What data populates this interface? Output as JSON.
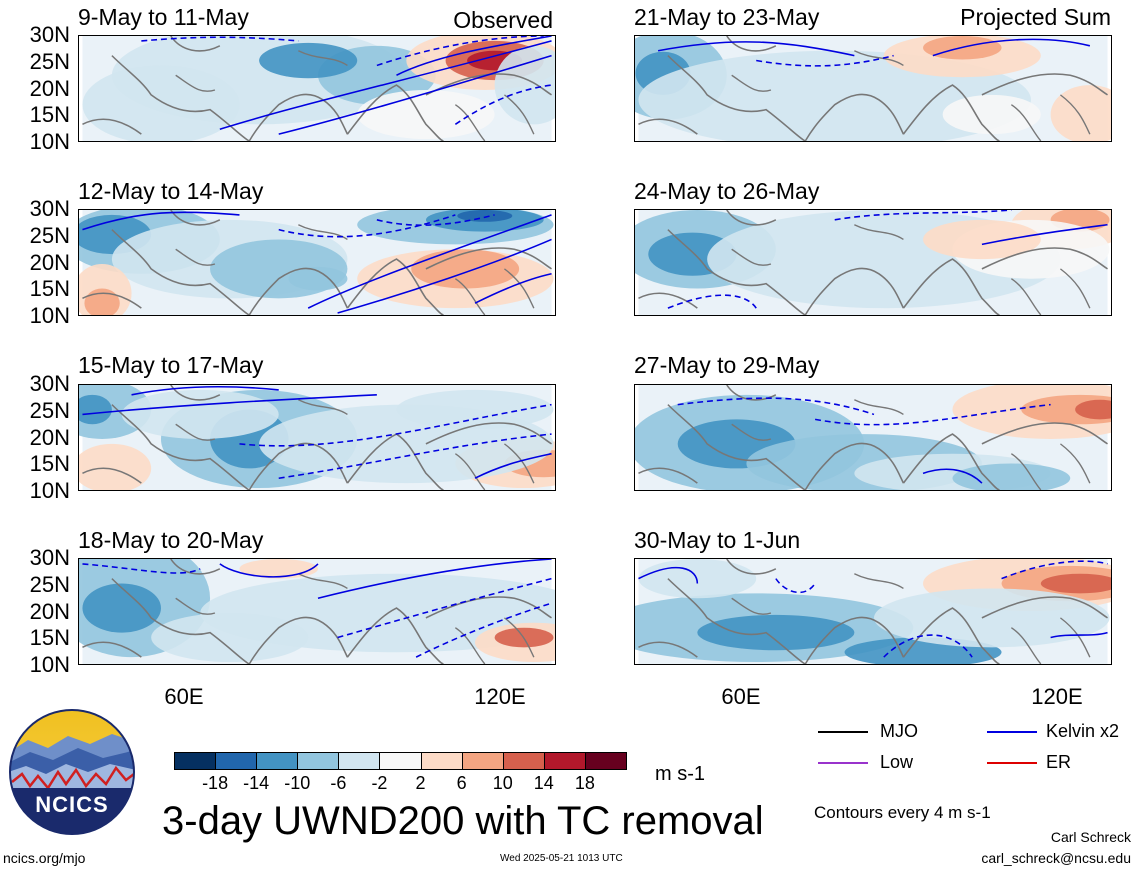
{
  "panels": [
    {
      "title": "9-May to 11-May",
      "corner": "Observed"
    },
    {
      "title": "21-May to 23-May",
      "corner": "Projected Sum"
    },
    {
      "title": "12-May to 14-May",
      "corner": ""
    },
    {
      "title": "24-May to 26-May",
      "corner": ""
    },
    {
      "title": "15-May to 17-May",
      "corner": ""
    },
    {
      "title": "27-May to 29-May",
      "corner": ""
    },
    {
      "title": "18-May to 20-May",
      "corner": ""
    },
    {
      "title": "30-May to 1-Jun",
      "corner": ""
    }
  ],
  "lat_labels": [
    "30N",
    "25N",
    "20N",
    "15N",
    "10N"
  ],
  "lon_labels": [
    "60E",
    "120E"
  ],
  "colorbar": {
    "ticks": [
      "-18",
      "-14",
      "-10",
      "-6",
      "-2",
      "2",
      "6",
      "10",
      "14",
      "18"
    ],
    "colors": [
      "#053061",
      "#2166ac",
      "#4393c3",
      "#92c5de",
      "#d1e5f0",
      "#f7f7f7",
      "#fddbc7",
      "#f4a582",
      "#d6604d",
      "#b2182b",
      "#67001f"
    ],
    "units": "m s-1"
  },
  "legend": {
    "items": [
      {
        "label": "MJO",
        "color": "#000000"
      },
      {
        "label": "Kelvin x2",
        "color": "#0000e0"
      },
      {
        "label": "Low",
        "color": "#9933cc"
      },
      {
        "label": "ER",
        "color": "#dd0000"
      }
    ],
    "contour_note": "Contours every 4 m s-1"
  },
  "main_title": "3-day UWND200 with TC removal",
  "logo_text": "NCICS",
  "footer": {
    "url": "ncics.org/mjo",
    "timestamp": "Wed 2025-05-21 1013 UTC",
    "author": "Carl Schreck",
    "email": "carl_schreck@ncsu.edu"
  }
}
